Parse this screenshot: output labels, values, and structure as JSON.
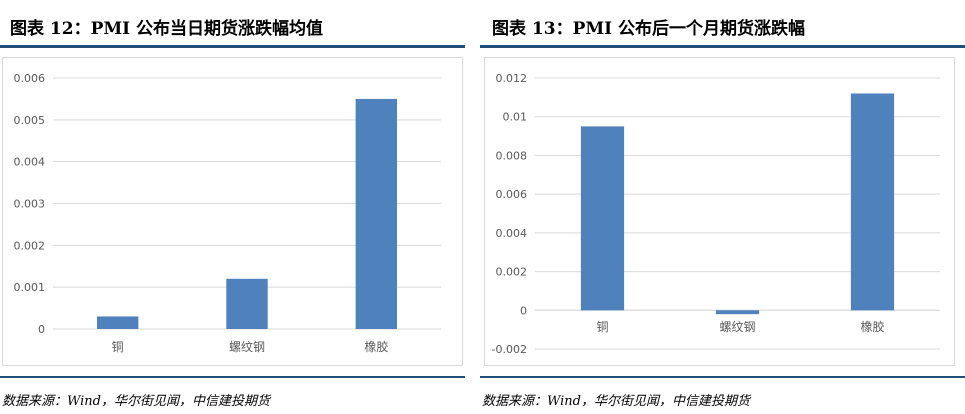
{
  "figures": [
    {
      "title": "图表 12：PMI 公布当日期货涨跌幅均值",
      "source": "数据来源：Wind，华尔街见闻，中信建投期货"
    },
    {
      "title": "图表 13：PMI 公布后一个月期货涨跌幅",
      "source": "数据来源：Wind，华尔街见闻，中信建投期货"
    }
  ],
  "chart_data": [
    {
      "type": "bar",
      "title": "",
      "categories": [
        "铜",
        "螺纹钢",
        "橡胶"
      ],
      "values": [
        0.0003,
        0.0012,
        0.0055
      ],
      "ylim": [
        0,
        0.006
      ],
      "yticks": [
        "0",
        "0.001",
        "0.002",
        "0.003",
        "0.004",
        "0.005",
        "0.006"
      ],
      "grid": true,
      "bar_color": "#4f81bd"
    },
    {
      "type": "bar",
      "title": "",
      "categories": [
        "铜",
        "螺纹钢",
        "橡胶"
      ],
      "values": [
        0.0095,
        -0.0002,
        0.0112
      ],
      "ylim": [
        -0.002,
        0.012
      ],
      "yticks": [
        "-0.002",
        "0",
        "0.002",
        "0.004",
        "0.006",
        "0.008",
        "0.01",
        "0.012"
      ],
      "grid": true,
      "bar_color": "#4f81bd"
    }
  ]
}
